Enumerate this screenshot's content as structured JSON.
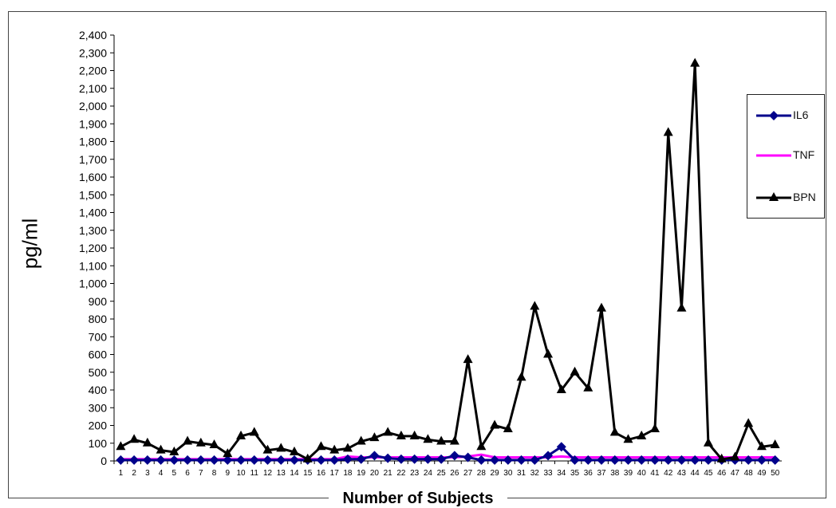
{
  "chart_data": {
    "type": "line",
    "xlabel": "Number of Subjects",
    "ylabel": "pg/ml",
    "ylim": [
      0,
      2400
    ],
    "ytick_step": 100,
    "categories": [
      1,
      2,
      3,
      4,
      5,
      6,
      7,
      8,
      9,
      10,
      11,
      12,
      13,
      14,
      15,
      16,
      17,
      18,
      19,
      20,
      21,
      22,
      23,
      24,
      25,
      26,
      27,
      28,
      29,
      30,
      31,
      32,
      33,
      34,
      35,
      36,
      37,
      38,
      39,
      40,
      41,
      42,
      43,
      44,
      45,
      46,
      47,
      48,
      49,
      50
    ],
    "legend_position": "right",
    "series": [
      {
        "name": "IL6",
        "color": "#00008B",
        "marker": "diamond",
        "values": [
          5,
          5,
          5,
          5,
          5,
          5,
          5,
          5,
          5,
          5,
          5,
          5,
          5,
          5,
          5,
          5,
          5,
          10,
          10,
          30,
          15,
          10,
          10,
          10,
          10,
          30,
          20,
          5,
          5,
          5,
          5,
          5,
          30,
          80,
          5,
          5,
          5,
          5,
          5,
          5,
          5,
          5,
          5,
          5,
          5,
          5,
          5,
          5,
          5,
          5
        ]
      },
      {
        "name": "TNF",
        "color": "#FF00FF",
        "marker": "none",
        "values": [
          10,
          10,
          10,
          10,
          10,
          10,
          10,
          10,
          10,
          10,
          10,
          10,
          10,
          10,
          10,
          10,
          10,
          25,
          20,
          20,
          20,
          20,
          20,
          20,
          20,
          20,
          25,
          35,
          20,
          20,
          20,
          20,
          20,
          25,
          20,
          20,
          20,
          20,
          20,
          20,
          20,
          20,
          20,
          20,
          20,
          20,
          20,
          20,
          20,
          20
        ]
      },
      {
        "name": "BPN",
        "color": "#000000",
        "marker": "triangle",
        "values": [
          80,
          120,
          100,
          60,
          50,
          110,
          100,
          90,
          40,
          140,
          160,
          60,
          70,
          50,
          10,
          80,
          60,
          70,
          110,
          130,
          160,
          140,
          140,
          120,
          110,
          110,
          570,
          80,
          200,
          180,
          470,
          870,
          600,
          400,
          500,
          410,
          860,
          160,
          120,
          140,
          180,
          1850,
          860,
          2240,
          100,
          10,
          20,
          210,
          80,
          90
        ]
      }
    ]
  }
}
